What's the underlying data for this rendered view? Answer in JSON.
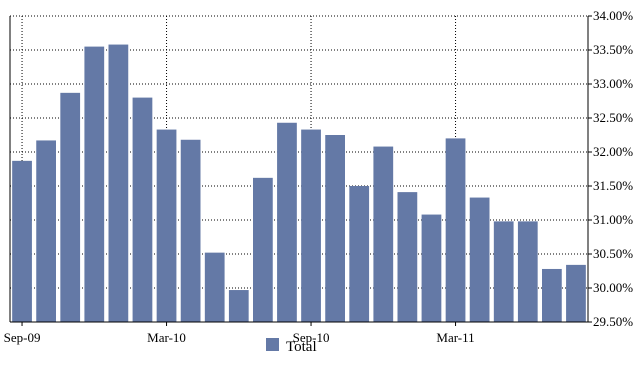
{
  "chart_data": {
    "type": "bar",
    "categories": [
      "Sep-09",
      "Oct-09",
      "Nov-09",
      "Dec-09",
      "Jan-10",
      "Feb-10",
      "Mar-10",
      "Apr-10",
      "May-10",
      "Jun-10",
      "Jul-10",
      "Aug-10",
      "Sep-10",
      "Oct-10",
      "Nov-10",
      "Dec-10",
      "Jan-11",
      "Feb-11",
      "Mar-11",
      "Apr-11",
      "May-11",
      "Jun-11",
      "Jul-11",
      "Aug-11"
    ],
    "x_tick_labels": [
      "Sep-09",
      "Mar-10",
      "Sep-10",
      "Mar-11"
    ],
    "x_tick_categories": [
      "Sep-09",
      "Mar-10",
      "Sep-10",
      "Mar-11"
    ],
    "series": [
      {
        "name": "Total",
        "color": "#6479A6",
        "values": [
          31.87,
          32.17,
          32.87,
          33.55,
          33.58,
          32.8,
          32.33,
          32.18,
          30.52,
          29.97,
          31.62,
          32.43,
          32.33,
          32.25,
          31.5,
          32.08,
          31.41,
          31.08,
          32.2,
          31.33,
          30.98,
          30.98,
          30.28,
          30.34
        ]
      }
    ],
    "y_axis": {
      "position": "right",
      "ylim": [
        29.5,
        34.0
      ],
      "ticks": [
        29.5,
        30.0,
        30.5,
        31.0,
        31.5,
        32.0,
        32.5,
        33.0,
        33.5,
        34.0
      ],
      "tick_labels": [
        "29.50%",
        "30.00%",
        "30.50%",
        "31.00%",
        "31.50%",
        "32.00%",
        "32.50%",
        "33.00%",
        "33.50%",
        "34.00%"
      ]
    },
    "grid": {
      "horizontal": "dotted",
      "vertical": "dotted"
    },
    "legend": {
      "placement": "bottom-center",
      "entries": [
        "Total"
      ]
    },
    "colors": {
      "bar": "#6479A6",
      "axis": "#000000",
      "grid": "#000000"
    }
  }
}
